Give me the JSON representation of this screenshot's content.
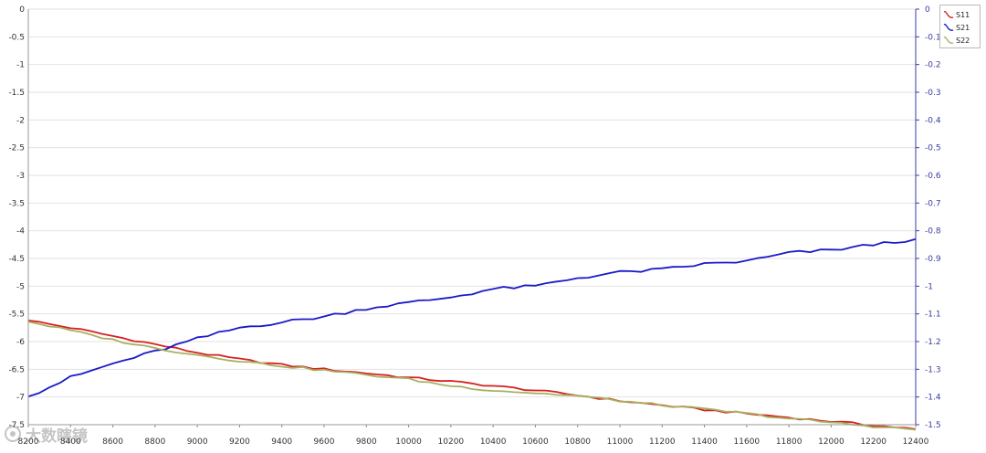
{
  "chart_data": {
    "type": "line",
    "x_ticks": [
      8200,
      8400,
      8600,
      8800,
      9000,
      9200,
      9400,
      9600,
      9800,
      10000,
      10200,
      10400,
      10600,
      10800,
      11000,
      11200,
      11400,
      11600,
      11800,
      12000,
      12200,
      12400
    ],
    "xlim": [
      8200,
      12400
    ],
    "y_left_ticks": [
      "0",
      "-0.5",
      "-1",
      "-1.5",
      "-2",
      "-2.5",
      "-3",
      "-3.5",
      "-4",
      "-4.5",
      "-5",
      "-5.5",
      "-6",
      "-6.5",
      "-7",
      "-7.5"
    ],
    "y_left_lim": [
      -7.5,
      0
    ],
    "y_right_ticks": [
      "0",
      "-0.1",
      "-0.2",
      "-0.3",
      "-0.4",
      "-0.5",
      "-0.6",
      "-0.7",
      "-0.8",
      "-0.9",
      "-1",
      "-1.1",
      "-1.2",
      "-1.3",
      "-1.4",
      "-1.5"
    ],
    "y_right_lim": [
      -1.5,
      0
    ],
    "grid": true,
    "legend_position": "top-right",
    "series": [
      {
        "name": "S11",
        "axis": "left",
        "color": "#d62020",
        "x": [
          8200,
          8400,
          8600,
          8800,
          9000,
          9200,
          9400,
          9600,
          9800,
          10000,
          10200,
          10400,
          10600,
          10800,
          11000,
          11200,
          11400,
          11600,
          11800,
          12000,
          12200,
          12400
        ],
        "y": [
          -5.62,
          -5.75,
          -5.9,
          -6.05,
          -6.2,
          -6.32,
          -6.42,
          -6.5,
          -6.57,
          -6.65,
          -6.72,
          -6.8,
          -6.88,
          -6.97,
          -7.07,
          -7.15,
          -7.23,
          -7.3,
          -7.37,
          -7.44,
          -7.51,
          -7.58
        ]
      },
      {
        "name": "S21",
        "axis": "right",
        "color": "#1a1ac8",
        "x": [
          8200,
          8400,
          8600,
          8800,
          9000,
          9200,
          9400,
          9600,
          9800,
          10000,
          10200,
          10400,
          10600,
          10800,
          11000,
          11200,
          11400,
          11600,
          11800,
          12000,
          12200,
          12400
        ],
        "y": [
          -1.398,
          -1.33,
          -1.28,
          -1.236,
          -1.19,
          -1.15,
          -1.13,
          -1.11,
          -1.08,
          -1.06,
          -1.04,
          -1.01,
          -1.0,
          -0.97,
          -0.95,
          -0.94,
          -0.92,
          -0.91,
          -0.88,
          -0.87,
          -0.85,
          -0.83
        ]
      },
      {
        "name": "S22",
        "axis": "left",
        "color": "#a8b060",
        "x": [
          8200,
          8400,
          8600,
          8800,
          9000,
          9200,
          9400,
          9600,
          9800,
          10000,
          10200,
          10400,
          10600,
          10800,
          11000,
          11200,
          11400,
          11600,
          11800,
          12000,
          12200,
          12400
        ],
        "y": [
          -5.64,
          -5.8,
          -5.97,
          -6.12,
          -6.24,
          -6.35,
          -6.44,
          -6.52,
          -6.6,
          -6.68,
          -6.8,
          -6.88,
          -6.93,
          -6.98,
          -7.07,
          -7.15,
          -7.22,
          -7.3,
          -7.39,
          -7.46,
          -7.53,
          -7.59
        ]
      }
    ]
  },
  "watermark": {
    "text": "大数瞎镜",
    "logo": "watermark-logo"
  }
}
